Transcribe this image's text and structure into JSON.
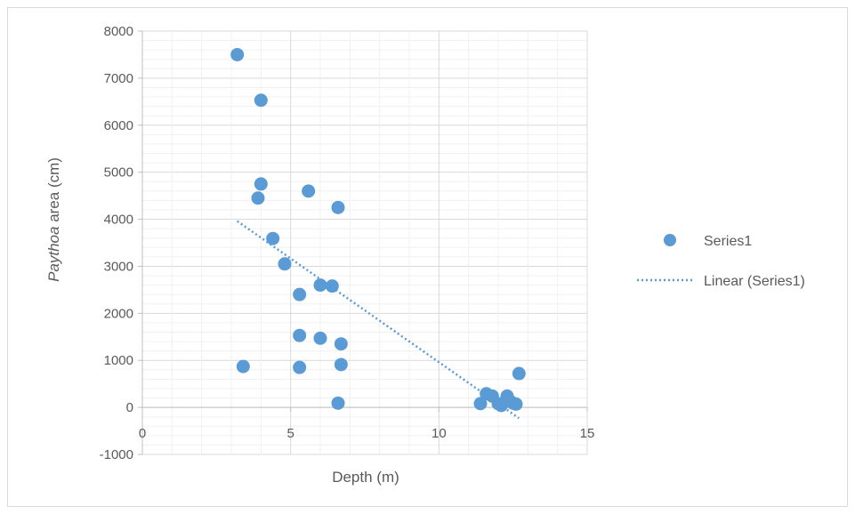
{
  "chart_data": {
    "type": "scatter",
    "xlabel": "Depth (m)",
    "ylabel_italic": "Paythoa",
    "ylabel_rest": " area (cm)",
    "xlim": [
      0,
      15
    ],
    "ylim": [
      -1000,
      8000
    ],
    "x_ticks": [
      0,
      5,
      10,
      15
    ],
    "y_ticks": [
      -1000,
      0,
      1000,
      2000,
      3000,
      4000,
      5000,
      6000,
      7000,
      8000
    ],
    "grid": true,
    "legend_position": "right",
    "series": [
      {
        "name": "Series1",
        "color": "#5b9bd5",
        "points": [
          [
            3.2,
            7500
          ],
          [
            4.0,
            6530
          ],
          [
            4.0,
            4750
          ],
          [
            3.9,
            4450
          ],
          [
            5.6,
            4600
          ],
          [
            6.6,
            4250
          ],
          [
            4.4,
            3590
          ],
          [
            4.8,
            3050
          ],
          [
            6.0,
            2600
          ],
          [
            6.4,
            2580
          ],
          [
            5.3,
            2400
          ],
          [
            5.3,
            1530
          ],
          [
            6.0,
            1470
          ],
          [
            6.7,
            1350
          ],
          [
            3.4,
            870
          ],
          [
            5.3,
            850
          ],
          [
            6.7,
            910
          ],
          [
            6.6,
            90
          ],
          [
            11.4,
            80
          ],
          [
            11.6,
            290
          ],
          [
            11.8,
            240
          ],
          [
            12.0,
            80
          ],
          [
            12.1,
            40
          ],
          [
            12.3,
            240
          ],
          [
            12.4,
            130
          ],
          [
            12.5,
            90
          ],
          [
            12.6,
            70
          ],
          [
            12.7,
            720
          ]
        ]
      }
    ],
    "trendline": {
      "name": "Linear (Series1)",
      "color": "#5b9bd5",
      "style": "dotted",
      "x_range": [
        3.2,
        12.7
      ],
      "y_at_start": 3960,
      "y_at_end": -230
    }
  }
}
